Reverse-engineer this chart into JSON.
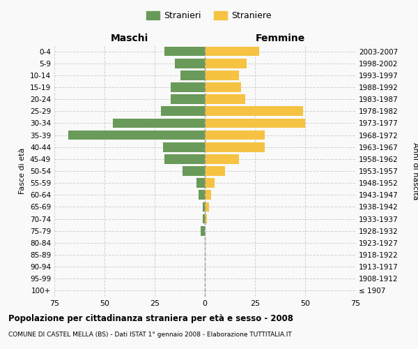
{
  "age_groups": [
    "100+",
    "95-99",
    "90-94",
    "85-89",
    "80-84",
    "75-79",
    "70-74",
    "65-69",
    "60-64",
    "55-59",
    "50-54",
    "45-49",
    "40-44",
    "35-39",
    "30-34",
    "25-29",
    "20-24",
    "15-19",
    "10-14",
    "5-9",
    "0-4"
  ],
  "birth_years": [
    "≤ 1907",
    "1908-1912",
    "1913-1917",
    "1918-1922",
    "1923-1927",
    "1928-1932",
    "1933-1937",
    "1938-1942",
    "1943-1947",
    "1948-1952",
    "1953-1957",
    "1958-1962",
    "1963-1967",
    "1968-1972",
    "1973-1977",
    "1978-1982",
    "1983-1987",
    "1988-1992",
    "1993-1997",
    "1998-2002",
    "2003-2007"
  ],
  "males": [
    0,
    0,
    0,
    0,
    0,
    2,
    1,
    1,
    3,
    4,
    11,
    20,
    21,
    68,
    46,
    22,
    17,
    17,
    12,
    15,
    20
  ],
  "females": [
    0,
    0,
    0,
    0,
    0,
    0,
    1,
    2,
    3,
    5,
    10,
    17,
    30,
    30,
    50,
    49,
    20,
    18,
    17,
    21,
    27
  ],
  "male_color": "#6a9a5a",
  "female_color": "#f5c242",
  "background_color": "#f9f9f9",
  "grid_color": "#cccccc",
  "title": "Popolazione per cittadinanza straniera per età e sesso - 2008",
  "subtitle": "COMUNE DI CASTEL MELLA (BS) - Dati ISTAT 1° gennaio 2008 - Elaborazione TUTTITALIA.IT",
  "xlabel_left": "Maschi",
  "xlabel_right": "Femmine",
  "ylabel_left": "Fasce di età",
  "ylabel_right": "Anni di nascita",
  "legend_male": "Stranieri",
  "legend_female": "Straniere",
  "xlim": 75,
  "xticklabels": [
    "75",
    "50",
    "25",
    "0",
    "25",
    "50",
    "75"
  ]
}
